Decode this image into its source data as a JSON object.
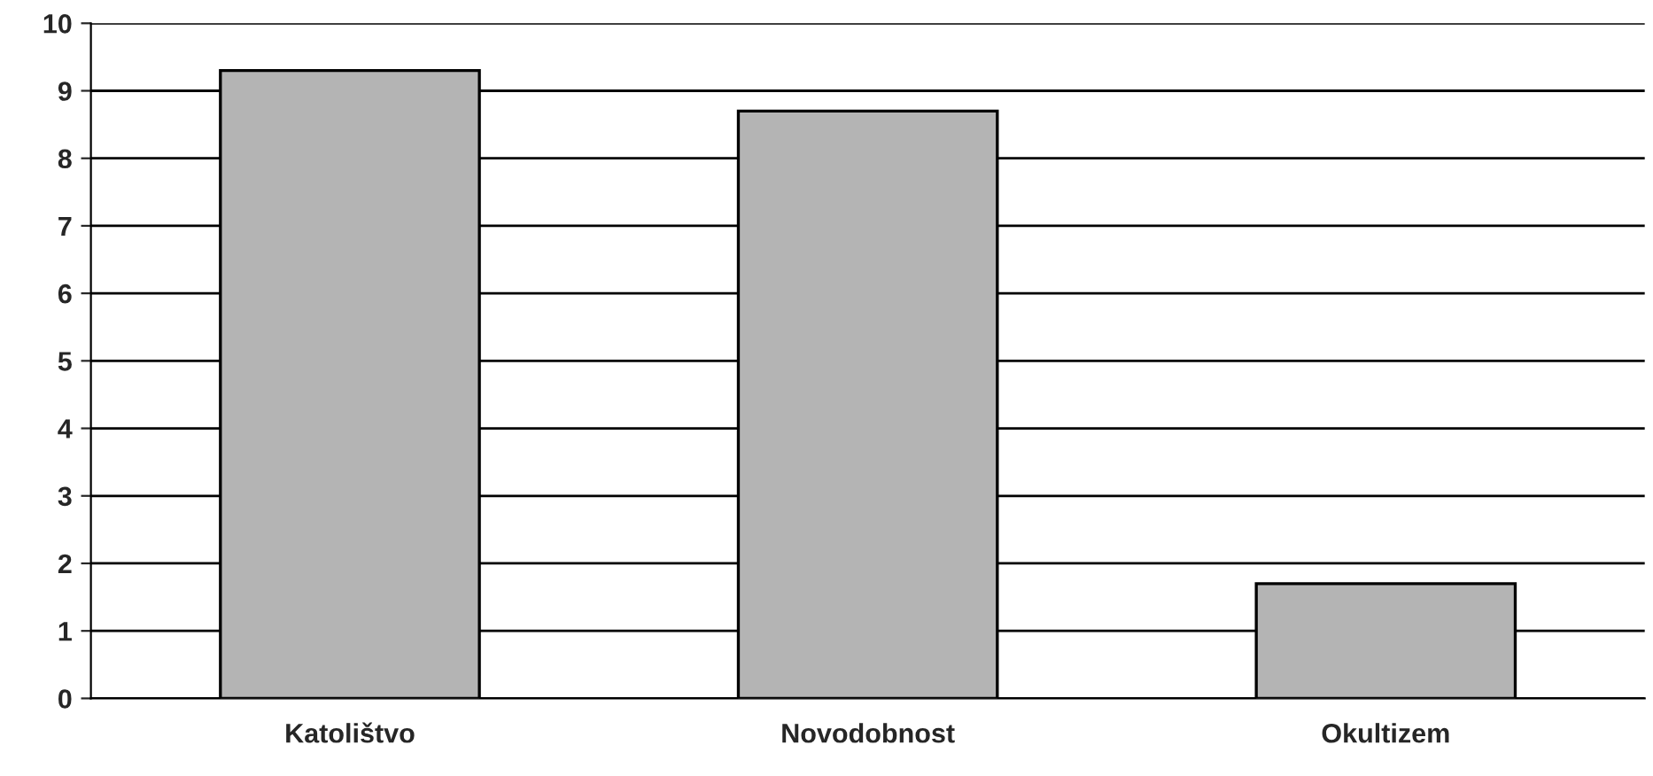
{
  "chart_data": {
    "type": "bar",
    "categories": [
      "Katolištvo",
      "Novodobnost",
      "Okultizem"
    ],
    "values": [
      9.3,
      8.7,
      1.7
    ],
    "color": "#b4b4b4",
    "ylim": [
      0,
      10
    ],
    "yticks": [
      0,
      1,
      2,
      3,
      4,
      5,
      6,
      7,
      8,
      9,
      10
    ],
    "grid": "y"
  }
}
